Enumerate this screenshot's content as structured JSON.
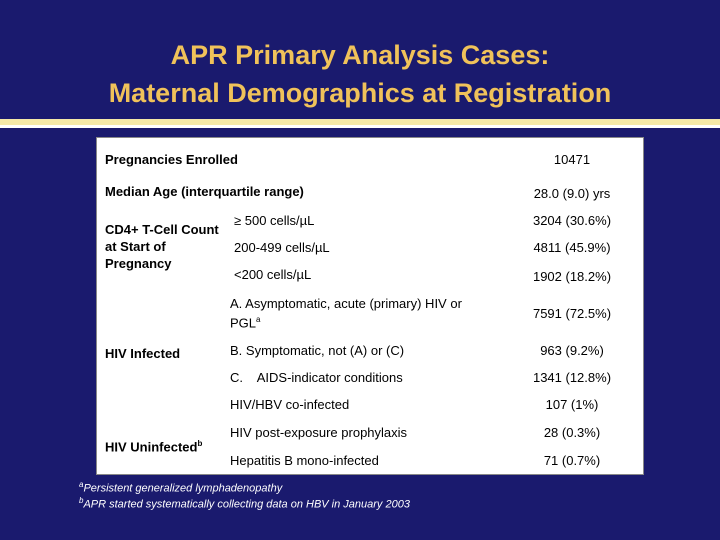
{
  "slide": {
    "title_line1": "APR Primary Analysis Cases:",
    "title_line2": "Maternal Demographics at Registration"
  },
  "table": {
    "pregnancies_label": "Pregnancies Enrolled",
    "pregnancies_value": "10471",
    "median_age_label": "Median Age (interquartile range)",
    "median_age_value": "28.0 (9.0) yrs",
    "cd4_group": "CD4+ T-Cell Count at Start of Pregnancy",
    "cd4_rows": [
      {
        "label": "≥ 500 cells/µL",
        "value": "3204 (30.6%)"
      },
      {
        "label": "200-499 cells/µL",
        "value": "4811 (45.9%)"
      },
      {
        "label": "<200 cells/µL",
        "value": "1902 (18.2%)"
      }
    ],
    "hiv_infected_group": "HIV Infected",
    "hiv_infected_rows": [
      {
        "label": "A. Asymptomatic, acute (primary) HIV or PGL",
        "sup": "a",
        "value": "7591 (72.5%)"
      },
      {
        "label": "B. Symptomatic, not (A) or (C)",
        "value": "963 (9.2%)"
      },
      {
        "label": "C.    AIDS-indicator conditions",
        "value": "1341 (12.8%)"
      },
      {
        "label": "HIV/HBV co-infected",
        "value": "107 (1%)"
      }
    ],
    "hiv_uninfected_group": "HIV Uninfected",
    "hiv_uninfected_sup": "b",
    "hiv_uninfected_rows": [
      {
        "label": "HIV post-exposure prophylaxis",
        "value": "28 (0.3%)"
      },
      {
        "label": "Hepatitis B mono-infected",
        "value": "71 (0.7%)"
      }
    ]
  },
  "footnotes": {
    "a_mark": "a",
    "a_text": "Persistent generalized lymphadenopathy",
    "b_mark": "b",
    "b_text": "APR started systematically collecting data on HBV in January 2003"
  }
}
